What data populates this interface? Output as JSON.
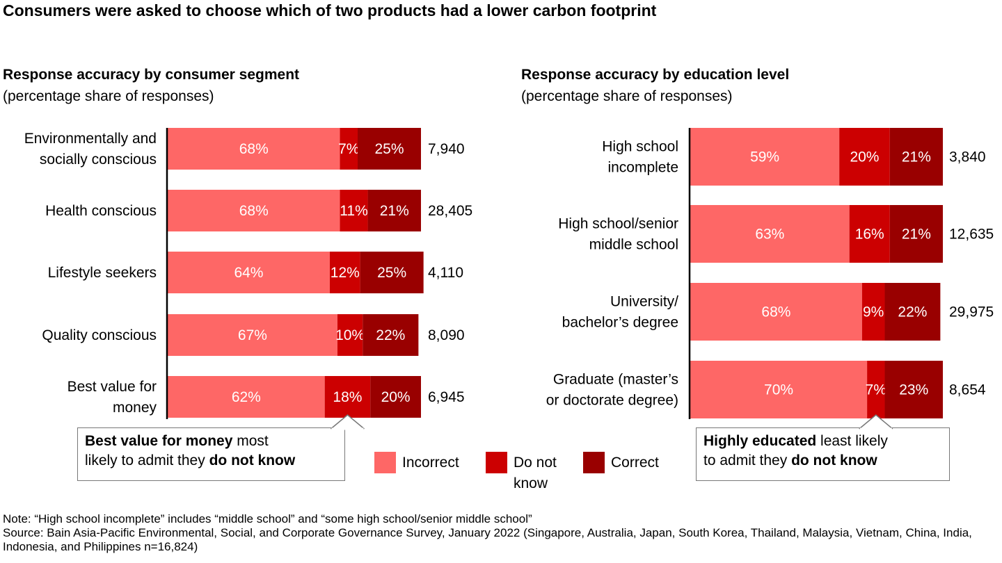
{
  "title": "Consumers were asked to choose which of two products had a lower carbon footprint",
  "colors": {
    "incorrect": "#fe6766",
    "do_not_know": "#cc0001",
    "correct": "#990000",
    "axis": "#000000"
  },
  "legend": {
    "incorrect": "Incorrect",
    "do_not_know_line1": "Do not",
    "do_not_know_line2": "know",
    "correct": "Correct"
  },
  "chart_data": [
    {
      "type": "bar",
      "orientation": "horizontal-stacked",
      "title": "Response accuracy by consumer segment",
      "subtitle": "(percentage share of responses)",
      "categories": [
        "Environmentally and socially conscious",
        "Health conscious",
        "Lifestyle seekers",
        "Quality conscious",
        "Best value for money"
      ],
      "category_lines": [
        [
          "Environmentally and",
          "socially conscious"
        ],
        [
          "Health conscious"
        ],
        [
          "Lifestyle seekers"
        ],
        [
          "Quality conscious"
        ],
        [
          "Best value for",
          "money"
        ]
      ],
      "series": [
        {
          "name": "Incorrect",
          "values": [
            68,
            68,
            64,
            67,
            62
          ]
        },
        {
          "name": "Do not know",
          "values": [
            7,
            11,
            12,
            10,
            18
          ]
        },
        {
          "name": "Correct",
          "values": [
            25,
            21,
            25,
            22,
            20
          ]
        }
      ],
      "n_values": [
        "7,940",
        "28,405",
        "4,110",
        "8,090",
        "6,945"
      ],
      "xlim": [
        0,
        100
      ]
    },
    {
      "type": "bar",
      "orientation": "horizontal-stacked",
      "title": "Response accuracy by education level",
      "subtitle": "(percentage share of responses)",
      "categories": [
        "High school incomplete",
        "High school/senior middle school",
        "University/ bachelor’s degree",
        "Graduate (master’s or doctorate degree)"
      ],
      "category_lines": [
        [
          "High school",
          "incomplete"
        ],
        [
          "High school/senior",
          "middle school"
        ],
        [
          "University/",
          "bachelor’s degree"
        ],
        [
          "Graduate (master’s",
          "or doctorate degree)"
        ]
      ],
      "series": [
        {
          "name": "Incorrect",
          "values": [
            59,
            63,
            68,
            70
          ]
        },
        {
          "name": "Do not know",
          "values": [
            20,
            16,
            9,
            7
          ]
        },
        {
          "name": "Correct",
          "values": [
            21,
            21,
            22,
            23
          ]
        }
      ],
      "n_values": [
        "3,840",
        "12,635",
        "29,975",
        "8,654"
      ],
      "xlim": [
        0,
        100
      ]
    }
  ],
  "callouts": {
    "left": {
      "bold1": "Best value for money",
      "text1": " most",
      "text2": "likely to admit they ",
      "bold2": "do not know"
    },
    "right": {
      "bold1": "Highly educated",
      "text1": " least likely",
      "text2": "to admit they ",
      "bold2": "do not know"
    }
  },
  "footnotes": {
    "note": "Note: “High school incomplete” includes “middle school” and “some high school/senior middle school”",
    "source": "Source: Bain Asia-Pacific Environmental, Social, and Corporate Governance Survey, January 2022 (Singapore, Australia, Japan, South Korea, Thailand, Malaysia, Vietnam, China, India, Indonesia, and Philippines n=16,824)"
  }
}
